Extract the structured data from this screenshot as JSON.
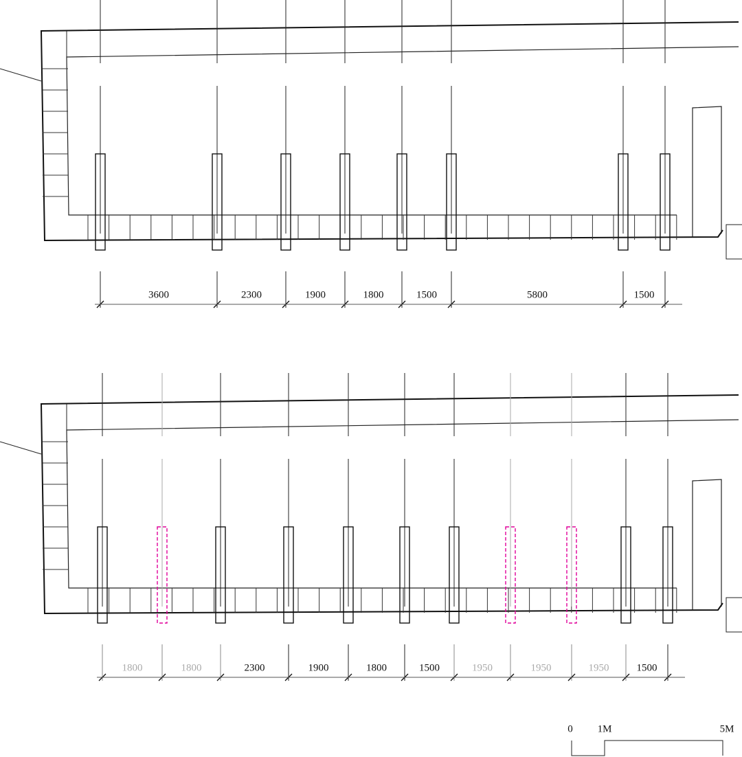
{
  "plans": [
    {
      "dimensions": [
        "3600",
        "2300",
        "1900",
        "1800",
        "1500",
        "5800",
        "1500"
      ]
    },
    {
      "dimensions": [
        "1800",
        "1800",
        "2300",
        "1900",
        "1800",
        "1500",
        "1950",
        "1950",
        "1950",
        "1500"
      ]
    }
  ],
  "scale_bar": {
    "labels": [
      "0",
      "1M",
      "5M"
    ]
  }
}
